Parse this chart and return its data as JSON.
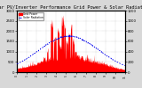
{
  "title": "Solar PV/Inverter Performance Grid Power & Solar Radiation",
  "title_fontsize": 3.8,
  "bg_color": "#d8d8d8",
  "plot_bg_color": "#ffffff",
  "ylabel_right_label": "W/m2",
  "ylim_left": [
    0,
    3000
  ],
  "ylim_right": [
    0,
    1200
  ],
  "grid_color": "#aaaaaa",
  "bar_color": "#ff0000",
  "line_color": "#0000ee",
  "n_points": 400,
  "legend_power": "Grid Power",
  "legend_solar": "Solar Radiation",
  "right_yticks": [
    0,
    200,
    400,
    600,
    800,
    1000,
    1200
  ],
  "left_yticks": [
    0,
    500,
    1000,
    1500,
    2000,
    2500,
    3000
  ]
}
